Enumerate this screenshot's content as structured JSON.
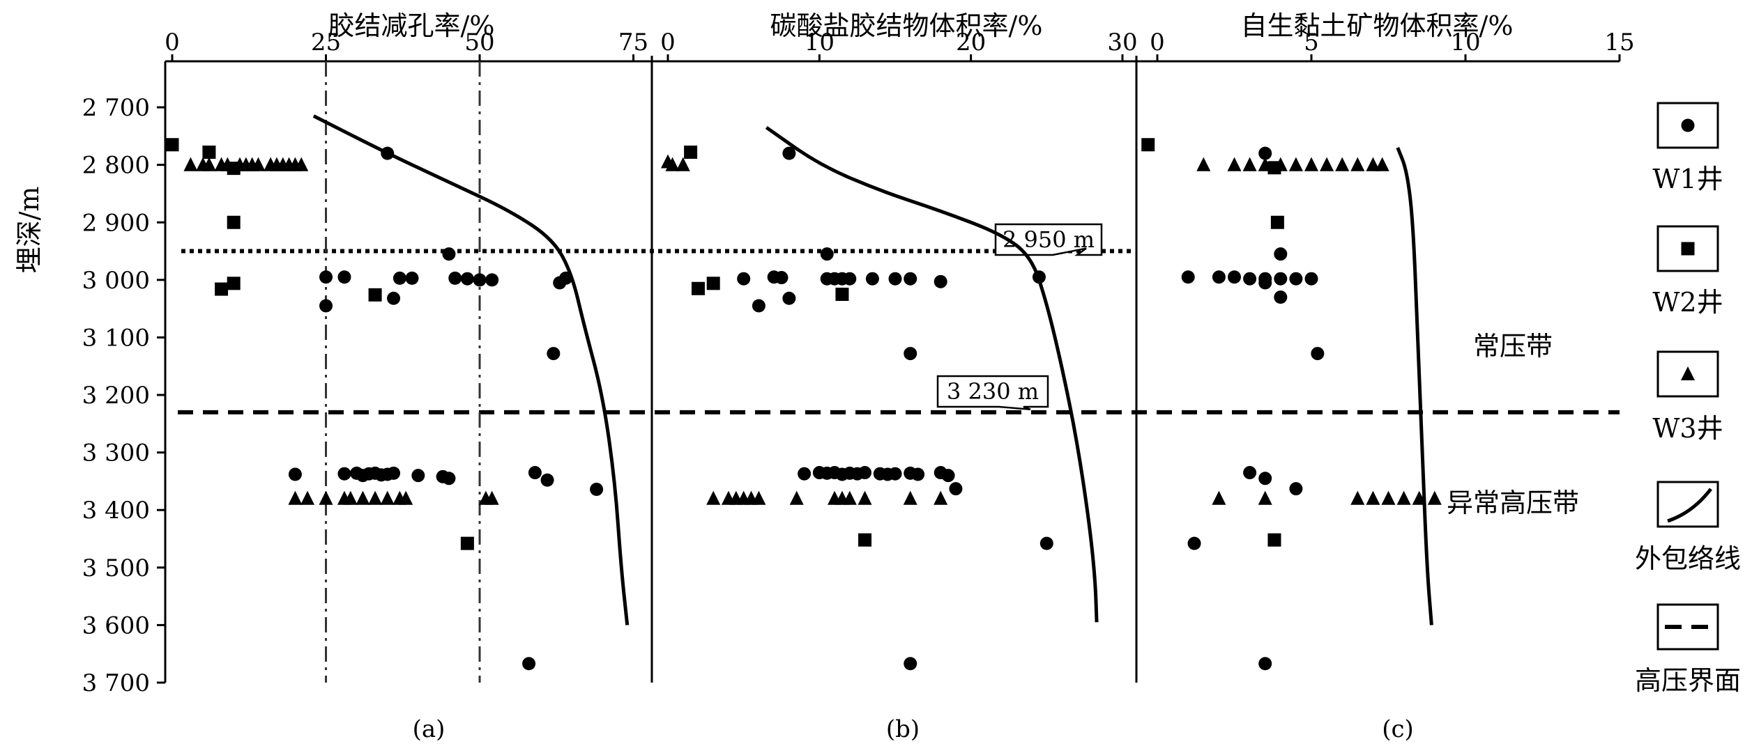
{
  "y_axis_label": "埋深/m",
  "legend": {
    "items": [
      {
        "label": "W1井",
        "symbol": "circle"
      },
      {
        "label": "W2井",
        "symbol": "square"
      },
      {
        "label": "W3井",
        "symbol": "triangle"
      },
      {
        "label": "外包络线",
        "symbol": "curve"
      },
      {
        "label": "高压界面",
        "symbol": "dash"
      }
    ]
  },
  "zones": {
    "normal": "常压带",
    "high": "异常高压带"
  },
  "annotations": [
    "2 950 m",
    "3 230 m"
  ],
  "chart_data": [
    {
      "type": "scatter",
      "panel_label": "(a)",
      "title": "胶结减孔率/%",
      "x_ticks": [
        "0",
        "25",
        "50",
        "75"
      ],
      "xlim": [
        0,
        78
      ],
      "ylim": [
        2620,
        3700
      ],
      "y_ticks": [
        "2 700",
        "2 800",
        "2 900",
        "3 000",
        "3 100",
        "3 200",
        "3 300",
        "3 400",
        "3 500",
        "3 600",
        "3 700"
      ],
      "y_reversed": true,
      "reference_lines_x": [
        25,
        50
      ],
      "series": [
        {
          "name": "W1井",
          "marker": "circle",
          "points": [
            [
              35,
              2780
            ],
            [
              45,
              2955
            ],
            [
              25,
              2995
            ],
            [
              28,
              2995
            ],
            [
              37,
              2997
            ],
            [
              39,
              2997
            ],
            [
              46,
              2997
            ],
            [
              48,
              2998
            ],
            [
              50,
              3000
            ],
            [
              52,
              3000
            ],
            [
              64,
              2997
            ],
            [
              63,
              3005
            ],
            [
              25,
              3045
            ],
            [
              36,
              3032
            ],
            [
              62,
              3128
            ],
            [
              20,
              3338
            ],
            [
              28,
              3337
            ],
            [
              30,
              3336
            ],
            [
              31,
              3340
            ],
            [
              32,
              3337
            ],
            [
              33,
              3336
            ],
            [
              34,
              3339
            ],
            [
              35,
              3338
            ],
            [
              36,
              3336
            ],
            [
              40,
              3340
            ],
            [
              44,
              3342
            ],
            [
              45,
              3345
            ],
            [
              59,
              3335
            ],
            [
              61,
              3348
            ],
            [
              69,
              3364
            ],
            [
              58,
              3667
            ]
          ]
        },
        {
          "name": "W2井",
          "marker": "square",
          "points": [
            [
              0,
              2765
            ],
            [
              6,
              2778
            ],
            [
              10,
              2806
            ],
            [
              10,
              2900
            ],
            [
              10,
              3006
            ],
            [
              8,
              3016
            ],
            [
              33,
              3026
            ],
            [
              48,
              3458
            ]
          ]
        },
        {
          "name": "W3井",
          "marker": "triangle",
          "points": [
            [
              3,
              2800
            ],
            [
              5,
              2800
            ],
            [
              6,
              2800
            ],
            [
              8,
              2800
            ],
            [
              9,
              2800
            ],
            [
              11,
              2800
            ],
            [
              12,
              2800
            ],
            [
              13,
              2800
            ],
            [
              14,
              2800
            ],
            [
              16,
              2800
            ],
            [
              17,
              2800
            ],
            [
              18,
              2800
            ],
            [
              19,
              2800
            ],
            [
              20,
              2800
            ],
            [
              21,
              2800
            ],
            [
              20,
              3380
            ],
            [
              22,
              3380
            ],
            [
              25,
              3380
            ],
            [
              28,
              3380
            ],
            [
              29,
              3380
            ],
            [
              31,
              3380
            ],
            [
              33,
              3380
            ],
            [
              35,
              3380
            ],
            [
              37,
              3380
            ],
            [
              38,
              3380
            ],
            [
              51,
              3380
            ],
            [
              52,
              3380
            ]
          ]
        },
        {
          "name": "外包络线",
          "marker": "line",
          "points": [
            [
              23,
              2715
            ],
            [
              35,
              2780
            ],
            [
              45,
              2830
            ],
            [
              55,
              2880
            ],
            [
              62,
              2930
            ],
            [
              65,
              2990
            ],
            [
              67,
              3080
            ],
            [
              70,
              3200
            ],
            [
              72,
              3350
            ],
            [
              73,
              3500
            ],
            [
              74,
              3600
            ]
          ]
        }
      ]
    },
    {
      "type": "scatter",
      "panel_label": "(b)",
      "title": "碳酸盐胶结物体积率/%",
      "x_ticks": [
        "0",
        "10",
        "20",
        "30"
      ],
      "xlim": [
        0,
        30
      ],
      "ylim": [
        2620,
        3700
      ],
      "y_reversed": true,
      "series": [
        {
          "name": "W1井",
          "marker": "circle",
          "points": [
            [
              8,
              2780
            ],
            [
              10.5,
              2955
            ],
            [
              5,
              2998
            ],
            [
              7,
              2995
            ],
            [
              7.5,
              2996
            ],
            [
              10.5,
              2998
            ],
            [
              11,
              2998
            ],
            [
              11.5,
              2998
            ],
            [
              12,
              2998
            ],
            [
              13.5,
              2998
            ],
            [
              15,
              2998
            ],
            [
              16,
              2998
            ],
            [
              18,
              3003
            ],
            [
              24.5,
              2995
            ],
            [
              6,
              3045
            ],
            [
              8,
              3032
            ],
            [
              16,
              3128
            ],
            [
              9,
              3337
            ],
            [
              10,
              3335
            ],
            [
              10.5,
              3336
            ],
            [
              11,
              3335
            ],
            [
              11.5,
              3338
            ],
            [
              12,
              3336
            ],
            [
              12.5,
              3337
            ],
            [
              13,
              3335
            ],
            [
              14,
              3337
            ],
            [
              14.5,
              3338
            ],
            [
              15,
              3337
            ],
            [
              16,
              3336
            ],
            [
              16.5,
              3338
            ],
            [
              18,
              3335
            ],
            [
              18.5,
              3340
            ],
            [
              19,
              3363
            ],
            [
              25,
              3458
            ],
            [
              16,
              3667
            ]
          ]
        },
        {
          "name": "W2井",
          "marker": "square",
          "points": [
            [
              1.5,
              2778
            ],
            [
              2,
              3015
            ],
            [
              3,
              3006
            ],
            [
              11.5,
              3025
            ],
            [
              13,
              3452
            ]
          ]
        },
        {
          "name": "W3井",
          "marker": "triangle",
          "points": [
            [
              0,
              2795
            ],
            [
              0.3,
              2800
            ],
            [
              1,
              2800
            ],
            [
              3,
              3380
            ],
            [
              4,
              3380
            ],
            [
              4.5,
              3380
            ],
            [
              5,
              3380
            ],
            [
              5.5,
              3380
            ],
            [
              6,
              3380
            ],
            [
              8.5,
              3380
            ],
            [
              11,
              3380
            ],
            [
              11.5,
              3380
            ],
            [
              12,
              3380
            ],
            [
              13,
              3380
            ],
            [
              16,
              3380
            ],
            [
              18,
              3380
            ]
          ]
        },
        {
          "name": "外包络线",
          "marker": "line",
          "points": [
            [
              6.5,
              2735
            ],
            [
              10,
              2800
            ],
            [
              14,
              2845
            ],
            [
              18,
              2880
            ],
            [
              22,
              2920
            ],
            [
              24,
              2960
            ],
            [
              25,
              3040
            ],
            [
              26,
              3150
            ],
            [
              27,
              3280
            ],
            [
              27.8,
              3420
            ],
            [
              28.2,
              3520
            ],
            [
              28.3,
              3595
            ]
          ]
        }
      ]
    },
    {
      "type": "scatter",
      "panel_label": "(c)",
      "title": "自生黏土矿物体积率/%",
      "x_ticks": [
        "0",
        "5",
        "10",
        "15"
      ],
      "xlim": [
        0,
        15
      ],
      "ylim": [
        2620,
        3700
      ],
      "y_reversed": true,
      "series": [
        {
          "name": "W1井",
          "marker": "circle",
          "points": [
            [
              3.5,
              2780
            ],
            [
              4,
              2955
            ],
            [
              1,
              2995
            ],
            [
              2,
              2995
            ],
            [
              2.5,
              2995
            ],
            [
              3,
              2998
            ],
            [
              3.5,
              2998
            ],
            [
              4,
              2998
            ],
            [
              4.5,
              2998
            ],
            [
              5,
              2998
            ],
            [
              3.5,
              3005
            ],
            [
              4,
              3030
            ],
            [
              5.2,
              3128
            ],
            [
              3,
              3335
            ],
            [
              3.5,
              3345
            ],
            [
              4.5,
              3363
            ],
            [
              1.2,
              3458
            ],
            [
              3.5,
              3667
            ]
          ]
        },
        {
          "name": "W2井",
          "marker": "square",
          "points": [
            [
              -0.3,
              2765
            ],
            [
              3.8,
              2805
            ],
            [
              3.9,
              2900
            ],
            [
              3.8,
              3452
            ]
          ]
        },
        {
          "name": "W3井",
          "marker": "triangle",
          "points": [
            [
              1.5,
              2800
            ],
            [
              2.5,
              2800
            ],
            [
              3,
              2800
            ],
            [
              3.5,
              2800
            ],
            [
              4,
              2800
            ],
            [
              4.5,
              2800
            ],
            [
              5,
              2800
            ],
            [
              5.5,
              2800
            ],
            [
              6,
              2800
            ],
            [
              6.5,
              2800
            ],
            [
              7,
              2800
            ],
            [
              7.3,
              2800
            ],
            [
              2,
              3380
            ],
            [
              3.5,
              3380
            ],
            [
              6.5,
              3380
            ],
            [
              7,
              3380
            ],
            [
              7.5,
              3380
            ],
            [
              8,
              3380
            ],
            [
              8.5,
              3380
            ],
            [
              9,
              3380
            ]
          ]
        },
        {
          "name": "外包络线",
          "marker": "line",
          "points": [
            [
              7.8,
              2770
            ],
            [
              8.1,
              2810
            ],
            [
              8.3,
              2900
            ],
            [
              8.45,
              3100
            ],
            [
              8.6,
              3300
            ],
            [
              8.75,
              3500
            ],
            [
              8.9,
              3600
            ]
          ]
        }
      ]
    }
  ]
}
